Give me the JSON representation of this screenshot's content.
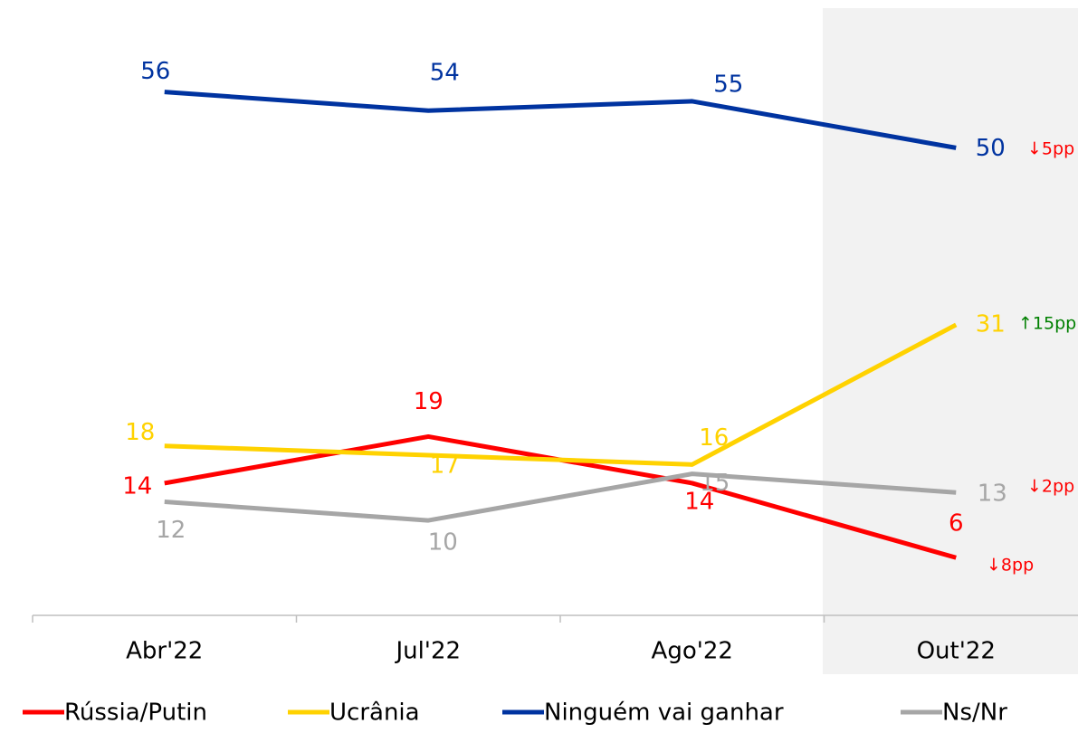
{
  "chart_data": {
    "type": "line",
    "categories": [
      "Abr'22",
      "Jul'22",
      "Ago'22",
      "Out'22"
    ],
    "series": [
      {
        "name": "Rússia/Putin",
        "color": "#ff0000",
        "values": [
          14,
          19,
          14,
          6
        ]
      },
      {
        "name": "Ucrânia",
        "color": "#ffd200",
        "values": [
          18,
          17,
          16,
          31
        ]
      },
      {
        "name": "Ninguém vai ganhar",
        "color": "#0033a0",
        "values": [
          56,
          54,
          55,
          50
        ]
      },
      {
        "name": "Ns/Nr",
        "color": "#a6a6a6",
        "values": [
          12,
          10,
          15,
          13
        ]
      }
    ],
    "ylim": [
      0,
      65
    ],
    "annotations": [
      {
        "text": "↓5pp",
        "color": "#ff0000"
      },
      {
        "text": "↑15pp",
        "color": "#008000"
      },
      {
        "text": "↓2pp",
        "color": "#ff0000"
      },
      {
        "text": "↓8pp",
        "color": "#ff0000"
      }
    ]
  }
}
